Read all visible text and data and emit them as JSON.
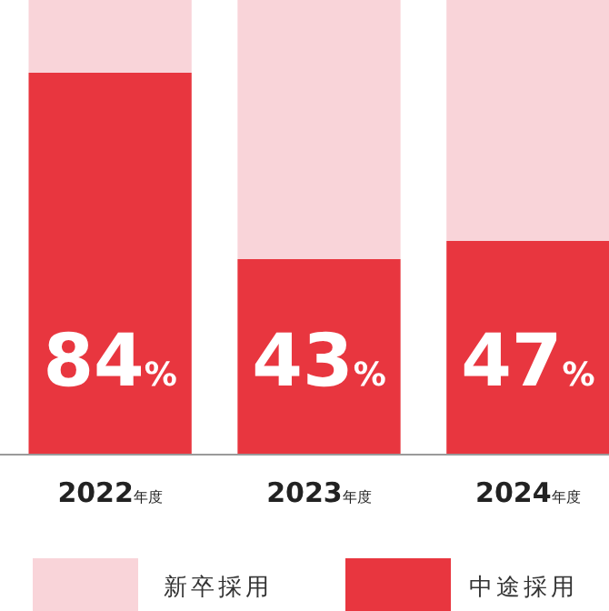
{
  "chart_data": {
    "type": "bar",
    "stacked": true,
    "categories": [
      "2022年度",
      "2023年度",
      "2024年度"
    ],
    "series": [
      {
        "name": "中途採用",
        "color": "#e8363f",
        "values": [
          84,
          43,
          47
        ],
        "value_labels": [
          "84%",
          "43%",
          "47%"
        ]
      },
      {
        "name": "新卒採用",
        "color": "#f9d4d9",
        "values": [
          16,
          57,
          53
        ]
      }
    ],
    "ylim": [
      0,
      100
    ],
    "tick_labels": "x",
    "legend": "bottom",
    "grid": false
  }
}
